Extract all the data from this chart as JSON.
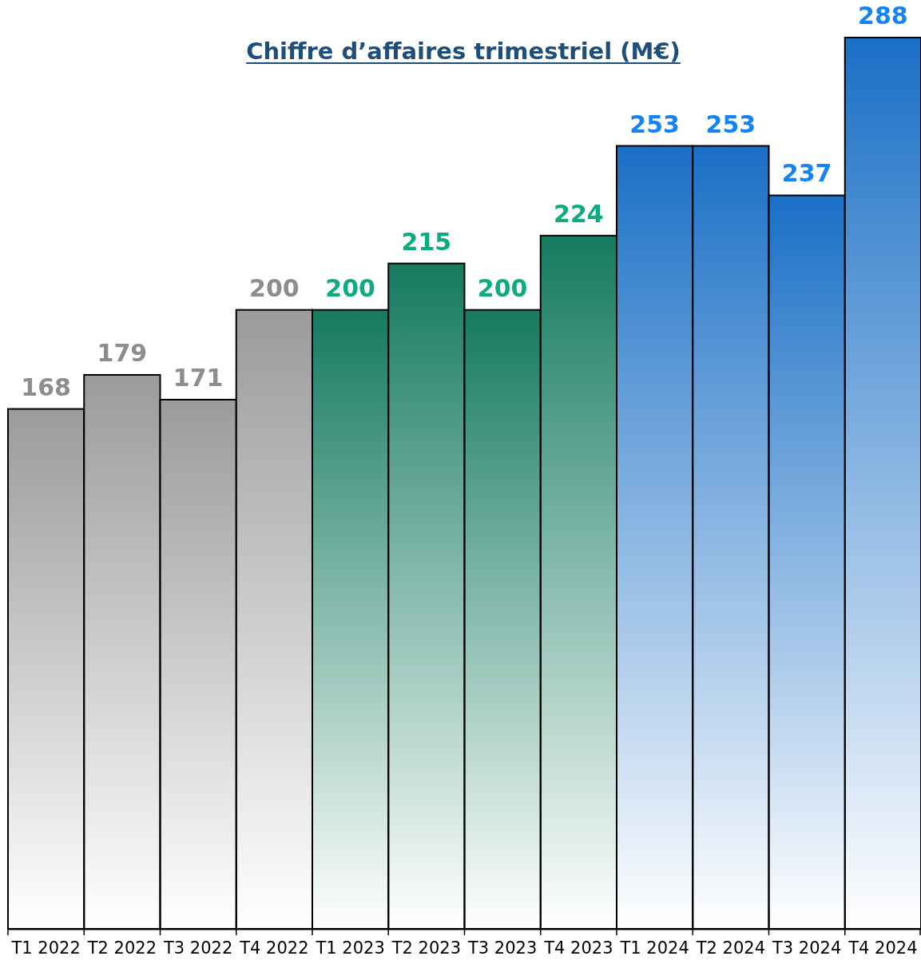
{
  "chart_data": {
    "type": "bar",
    "title": "Chiffre d’affaires trimestriel (M€)",
    "categories": [
      "T1 2022",
      "T2 2022",
      "T3 2022",
      "T4 2022",
      "T1 2023",
      "T2 2023",
      "T3 2023",
      "T4 2023",
      "T1 2024",
      "T2 2024",
      "T3 2024",
      "T4 2024"
    ],
    "values": [
      168,
      179,
      171,
      200,
      200,
      215,
      200,
      224,
      253,
      253,
      237,
      288
    ],
    "colors": [
      "#999c9a",
      "#999c9a",
      "#999c9a",
      "#999c9a",
      "#157a5f",
      "#157a5f",
      "#157a5f",
      "#157a5f",
      "#1a6fc6",
      "#1a6fc6",
      "#1a6fc6",
      "#1a6fc6"
    ],
    "ylim": [
      0,
      288
    ],
    "data_labels": true
  }
}
